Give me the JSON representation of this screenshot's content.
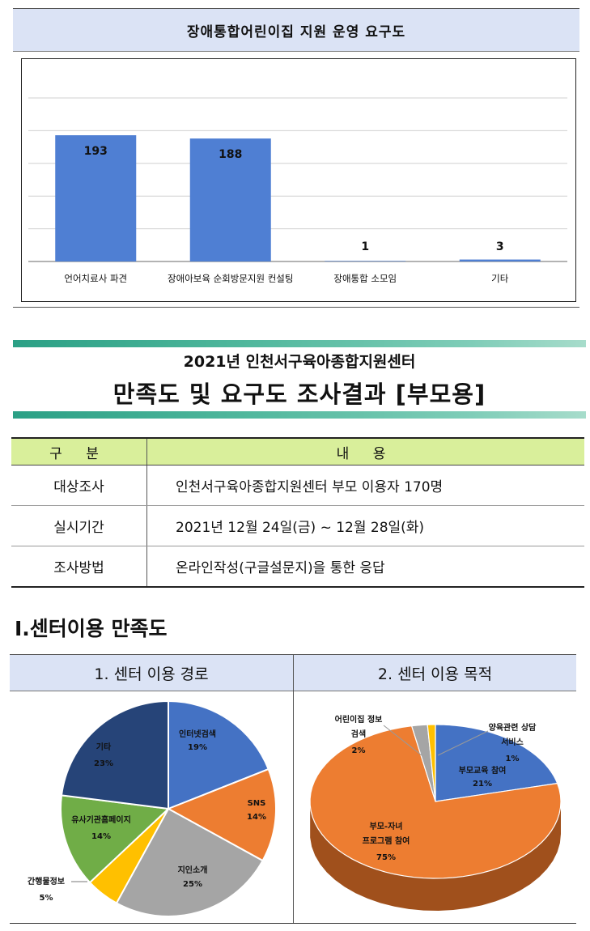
{
  "bar_chart": {
    "title": "장애통합어린이집 지원 운영 요구도"
  },
  "chart_data": [
    {
      "type": "bar",
      "title": "장애통합어린이집 지원 운영 요구도",
      "categories": [
        "언어치료사 파견",
        "장애아보육 순회방문지원 컨설팅",
        "장애통합 소모임",
        "기타"
      ],
      "values": [
        193,
        188,
        1,
        3
      ],
      "ylim": [
        0,
        250
      ],
      "grid": true,
      "colors": [
        "#4f7fd3"
      ]
    },
    {
      "type": "pie",
      "title": "1. 센터 이용 경로",
      "categories": [
        "인터넷검색",
        "SNS",
        "지인소개",
        "간행물정보",
        "유사기관홈페이지",
        "기타"
      ],
      "values": [
        19,
        14,
        25,
        5,
        14,
        23
      ],
      "colors": [
        "#4472c4",
        "#ed7d31",
        "#a5a5a5",
        "#ffc000",
        "#70ad47",
        "#264478"
      ]
    },
    {
      "type": "pie",
      "title": "2. 센터 이용 목적",
      "categories": [
        "부모교육 참여",
        "부모-자녀 프로그램 참여",
        "어린이집 정보 검색",
        "양육관련 상담 서비스"
      ],
      "values": [
        21,
        75,
        2,
        1
      ],
      "colors": [
        "#4472c4",
        "#ed7d31",
        "#a5a5a5",
        "#ffc000"
      ]
    }
  ],
  "banner": {
    "line1": "2021년  인천서구육아종합지원센터",
    "line2": "만족도  및  요구도  조사결과  [부모용]"
  },
  "info_table": {
    "headers": [
      "구 분",
      "내 용"
    ],
    "rows": [
      [
        "대상조사",
        "인천서구육아종합지원센터  부모  이용자  170명"
      ],
      [
        "실시기간",
        "2021년  12월  24일(금)  ~  12월  28일(화)"
      ],
      [
        "조사방법",
        "온라인작성(구글설문지)을  통한  응답"
      ]
    ]
  },
  "section": {
    "title": "Ⅰ.센터이용  만족도",
    "col1_title": "1.  센터  이용  경로",
    "col2_title": "2.  센터  이용  목적"
  },
  "pie1_labels": [
    {
      "name": "인터넷검색",
      "pct": "19%"
    },
    {
      "name": "SNS",
      "pct": "14%"
    },
    {
      "name": "지인소개",
      "pct": "25%"
    },
    {
      "name": "간행물정보",
      "pct": "5%"
    },
    {
      "name": "유사기관홈페이지",
      "pct": "14%"
    },
    {
      "name": "기타",
      "pct": "23%"
    }
  ],
  "pie2_labels": [
    {
      "name": "부모교육 참여",
      "pct": "21%"
    },
    {
      "line1": "부모-자녀",
      "line2": "프로그램 참여",
      "pct": "75%"
    },
    {
      "line1": "어린이집 정보",
      "line2": "검색",
      "pct": "2%"
    },
    {
      "line1": "양육관련 상담",
      "line2": "서비스",
      "pct": "1%"
    }
  ]
}
